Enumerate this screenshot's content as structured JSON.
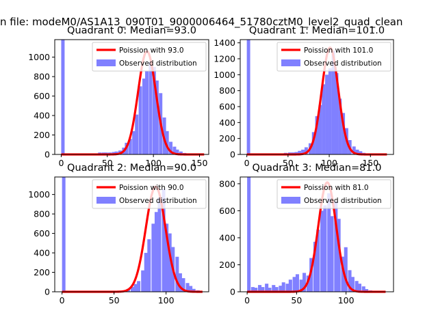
{
  "figure": {
    "suptitle": "n file: modeM0/AS1A13_090T01_9000006464_51780cztM0_level2_quad_clean"
  },
  "colors": {
    "bars": "#8080ff",
    "fit": "#ff0000",
    "axes": "#000000"
  },
  "chart_data": [
    {
      "type": "bar",
      "title": "Quadrant 0: Median=93.0",
      "xlabel": "",
      "ylabel": "",
      "xlim": [
        -7,
        160
      ],
      "ylim": [
        0,
        1180
      ],
      "xticks": [
        0,
        50,
        100,
        150
      ],
      "yticks": [
        0,
        200,
        400,
        600,
        800,
        1000
      ],
      "legend": {
        "placement": "top-right",
        "entries": [
          "Poission with 93.0",
          "Observed distribution"
        ]
      },
      "bin_width": 3.7,
      "bars": [
        [
          0,
          1180
        ],
        [
          40,
          20
        ],
        [
          44,
          20
        ],
        [
          47,
          20
        ],
        [
          51,
          20
        ],
        [
          55,
          25
        ],
        [
          58,
          30
        ],
        [
          62,
          40
        ],
        [
          66,
          70
        ],
        [
          69,
          120
        ],
        [
          73,
          160
        ],
        [
          77,
          240
        ],
        [
          80,
          410
        ],
        [
          84,
          700
        ],
        [
          88,
          780
        ],
        [
          91,
          860
        ],
        [
          95,
          950
        ],
        [
          99,
          900
        ],
        [
          102,
          760
        ],
        [
          106,
          630
        ],
        [
          110,
          380
        ],
        [
          113,
          240
        ],
        [
          117,
          130
        ],
        [
          121,
          80
        ],
        [
          124,
          50
        ],
        [
          128,
          30
        ],
        [
          132,
          15
        ]
      ],
      "fit": {
        "name": "Poission with 93.0",
        "mean": 93.0,
        "peak": 1060,
        "x_range": [
          0,
          155
        ]
      }
    },
    {
      "type": "bar",
      "title": "Quadrant 1: Median=101.0",
      "xlabel": "",
      "ylabel": "",
      "xlim": [
        -8,
        178
      ],
      "ylim": [
        0,
        1440
      ],
      "xticks": [
        0,
        50,
        100,
        150
      ],
      "yticks": [
        0,
        200,
        400,
        600,
        800,
        1000,
        1200,
        1400
      ],
      "legend": {
        "placement": "top-right",
        "entries": [
          "Poission with 101.0",
          "Observed distribution"
        ]
      },
      "bin_width": 4.1,
      "bars": [
        [
          0,
          1440
        ],
        [
          45,
          20
        ],
        [
          50,
          25
        ],
        [
          54,
          25
        ],
        [
          58,
          30
        ],
        [
          62,
          45
        ],
        [
          66,
          60
        ],
        [
          70,
          90
        ],
        [
          75,
          140
        ],
        [
          79,
          280
        ],
        [
          83,
          480
        ],
        [
          87,
          620
        ],
        [
          91,
          880
        ],
        [
          95,
          1000
        ],
        [
          99,
          1080
        ],
        [
          103,
          1300
        ],
        [
          107,
          1020
        ],
        [
          111,
          700
        ],
        [
          115,
          520
        ],
        [
          119,
          330
        ],
        [
          123,
          180
        ],
        [
          128,
          100
        ],
        [
          132,
          60
        ],
        [
          136,
          40
        ],
        [
          140,
          20
        ]
      ],
      "fit": {
        "name": "Poission with 101.0",
        "mean": 101.0,
        "peak": 1340,
        "x_range": [
          0,
          170
        ]
      }
    },
    {
      "type": "bar",
      "title": "Quadrant 2: Median=90.0",
      "xlabel": "",
      "ylabel": "",
      "xlim": [
        -7,
        141
      ],
      "ylim": [
        0,
        1180
      ],
      "xticks": [
        0,
        50,
        100
      ],
      "yticks": [
        0,
        200,
        400,
        600,
        800,
        1000
      ],
      "legend": {
        "placement": "top-right",
        "entries": [
          "Poission with 90.0",
          "Observed distribution"
        ]
      },
      "bin_width": 3.3,
      "bars": [
        [
          0,
          1180
        ],
        [
          59,
          15
        ],
        [
          62,
          30
        ],
        [
          66,
          50
        ],
        [
          69,
          80
        ],
        [
          72,
          110
        ],
        [
          76,
          220
        ],
        [
          79,
          400
        ],
        [
          82,
          540
        ],
        [
          86,
          700
        ],
        [
          89,
          820
        ],
        [
          92,
          970
        ],
        [
          96,
          1060
        ],
        [
          99,
          700
        ],
        [
          102,
          600
        ],
        [
          105,
          460
        ],
        [
          109,
          360
        ],
        [
          112,
          190
        ],
        [
          115,
          140
        ],
        [
          119,
          90
        ],
        [
          122,
          60
        ],
        [
          125,
          30
        ],
        [
          129,
          15
        ]
      ],
      "fit": {
        "name": "Poission with 90.0",
        "mean": 90.0,
        "peak": 1080,
        "x_range": [
          0,
          135
        ]
      }
    },
    {
      "type": "bar",
      "title": "Quadrant 3: Median=81.0",
      "xlabel": "",
      "ylabel": "",
      "xlim": [
        -7,
        148
      ],
      "ylim": [
        0,
        850
      ],
      "xticks": [
        0,
        50,
        100
      ],
      "yticks": [
        0,
        200,
        400,
        600,
        800
      ],
      "legend": {
        "placement": "top-right",
        "entries": [
          "Poission with 81.0",
          "Observed distribution"
        ]
      },
      "bin_width": 3.5,
      "bars": [
        [
          0,
          850
        ],
        [
          4,
          35
        ],
        [
          7,
          30
        ],
        [
          11,
          50
        ],
        [
          14,
          35
        ],
        [
          18,
          60
        ],
        [
          21,
          30
        ],
        [
          25,
          50
        ],
        [
          28,
          35
        ],
        [
          32,
          45
        ],
        [
          35,
          70
        ],
        [
          39,
          60
        ],
        [
          42,
          90
        ],
        [
          46,
          110
        ],
        [
          49,
          130
        ],
        [
          53,
          90
        ],
        [
          56,
          140
        ],
        [
          60,
          120
        ],
        [
          63,
          250
        ],
        [
          67,
          370
        ],
        [
          70,
          460
        ],
        [
          74,
          600
        ],
        [
          77,
          640
        ],
        [
          81,
          730
        ],
        [
          84,
          560
        ],
        [
          88,
          670
        ],
        [
          91,
          540
        ],
        [
          95,
          260
        ],
        [
          98,
          330
        ],
        [
          102,
          160
        ],
        [
          105,
          110
        ],
        [
          109,
          80
        ],
        [
          112,
          60
        ],
        [
          116,
          40
        ],
        [
          119,
          20
        ],
        [
          123,
          10
        ]
      ],
      "fit": {
        "name": "Poission with 81.0",
        "mean": 81.0,
        "peak": 810,
        "x_range": [
          0,
          140
        ]
      }
    }
  ]
}
